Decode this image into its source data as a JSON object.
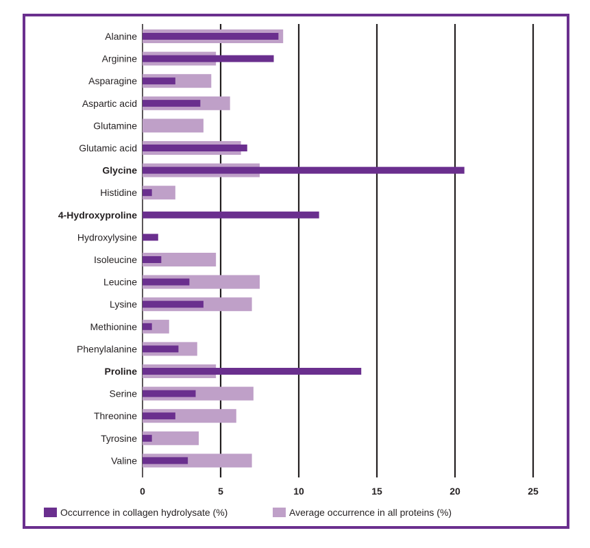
{
  "chart_data": {
    "type": "bar",
    "orientation": "horizontal",
    "categories": [
      "Alanine",
      "Arginine",
      "Asparagine",
      "Aspartic acid",
      "Glutamine",
      "Glutamic acid",
      "Glycine",
      "Histidine",
      "4-Hydroxyproline",
      "Hydroxylysine",
      "Isoleucine",
      "Leucine",
      "Lysine",
      "Methionine",
      "Phenylalanine",
      "Proline",
      "Serine",
      "Threonine",
      "Tyrosine",
      "Valine"
    ],
    "bold_categories": [
      "Glycine",
      "4-Hydroxyproline",
      "Proline"
    ],
    "series": [
      {
        "name": "Occurrence in collagen hydrolysate (%)",
        "color": "#6a2f8e",
        "values": [
          8.7,
          8.4,
          2.1,
          3.7,
          0,
          6.7,
          20.6,
          0.6,
          11.3,
          1.0,
          1.2,
          3.0,
          3.9,
          0.6,
          2.3,
          14.0,
          3.4,
          2.1,
          0.6,
          2.9
        ]
      },
      {
        "name": "Average occurrence in all proteins (%)",
        "color": "#bfa0c8",
        "values": [
          9.0,
          4.7,
          4.4,
          5.6,
          3.9,
          6.3,
          7.5,
          2.1,
          0,
          0,
          4.7,
          7.5,
          7.0,
          1.7,
          3.5,
          4.7,
          7.1,
          6.0,
          3.6,
          7.0
        ]
      }
    ],
    "xticks": [
      0,
      5,
      10,
      15,
      20,
      25
    ],
    "xlim": [
      0,
      25
    ],
    "grid": "vertical",
    "legend": "bottom",
    "title": "",
    "xlabel": "",
    "ylabel": ""
  }
}
